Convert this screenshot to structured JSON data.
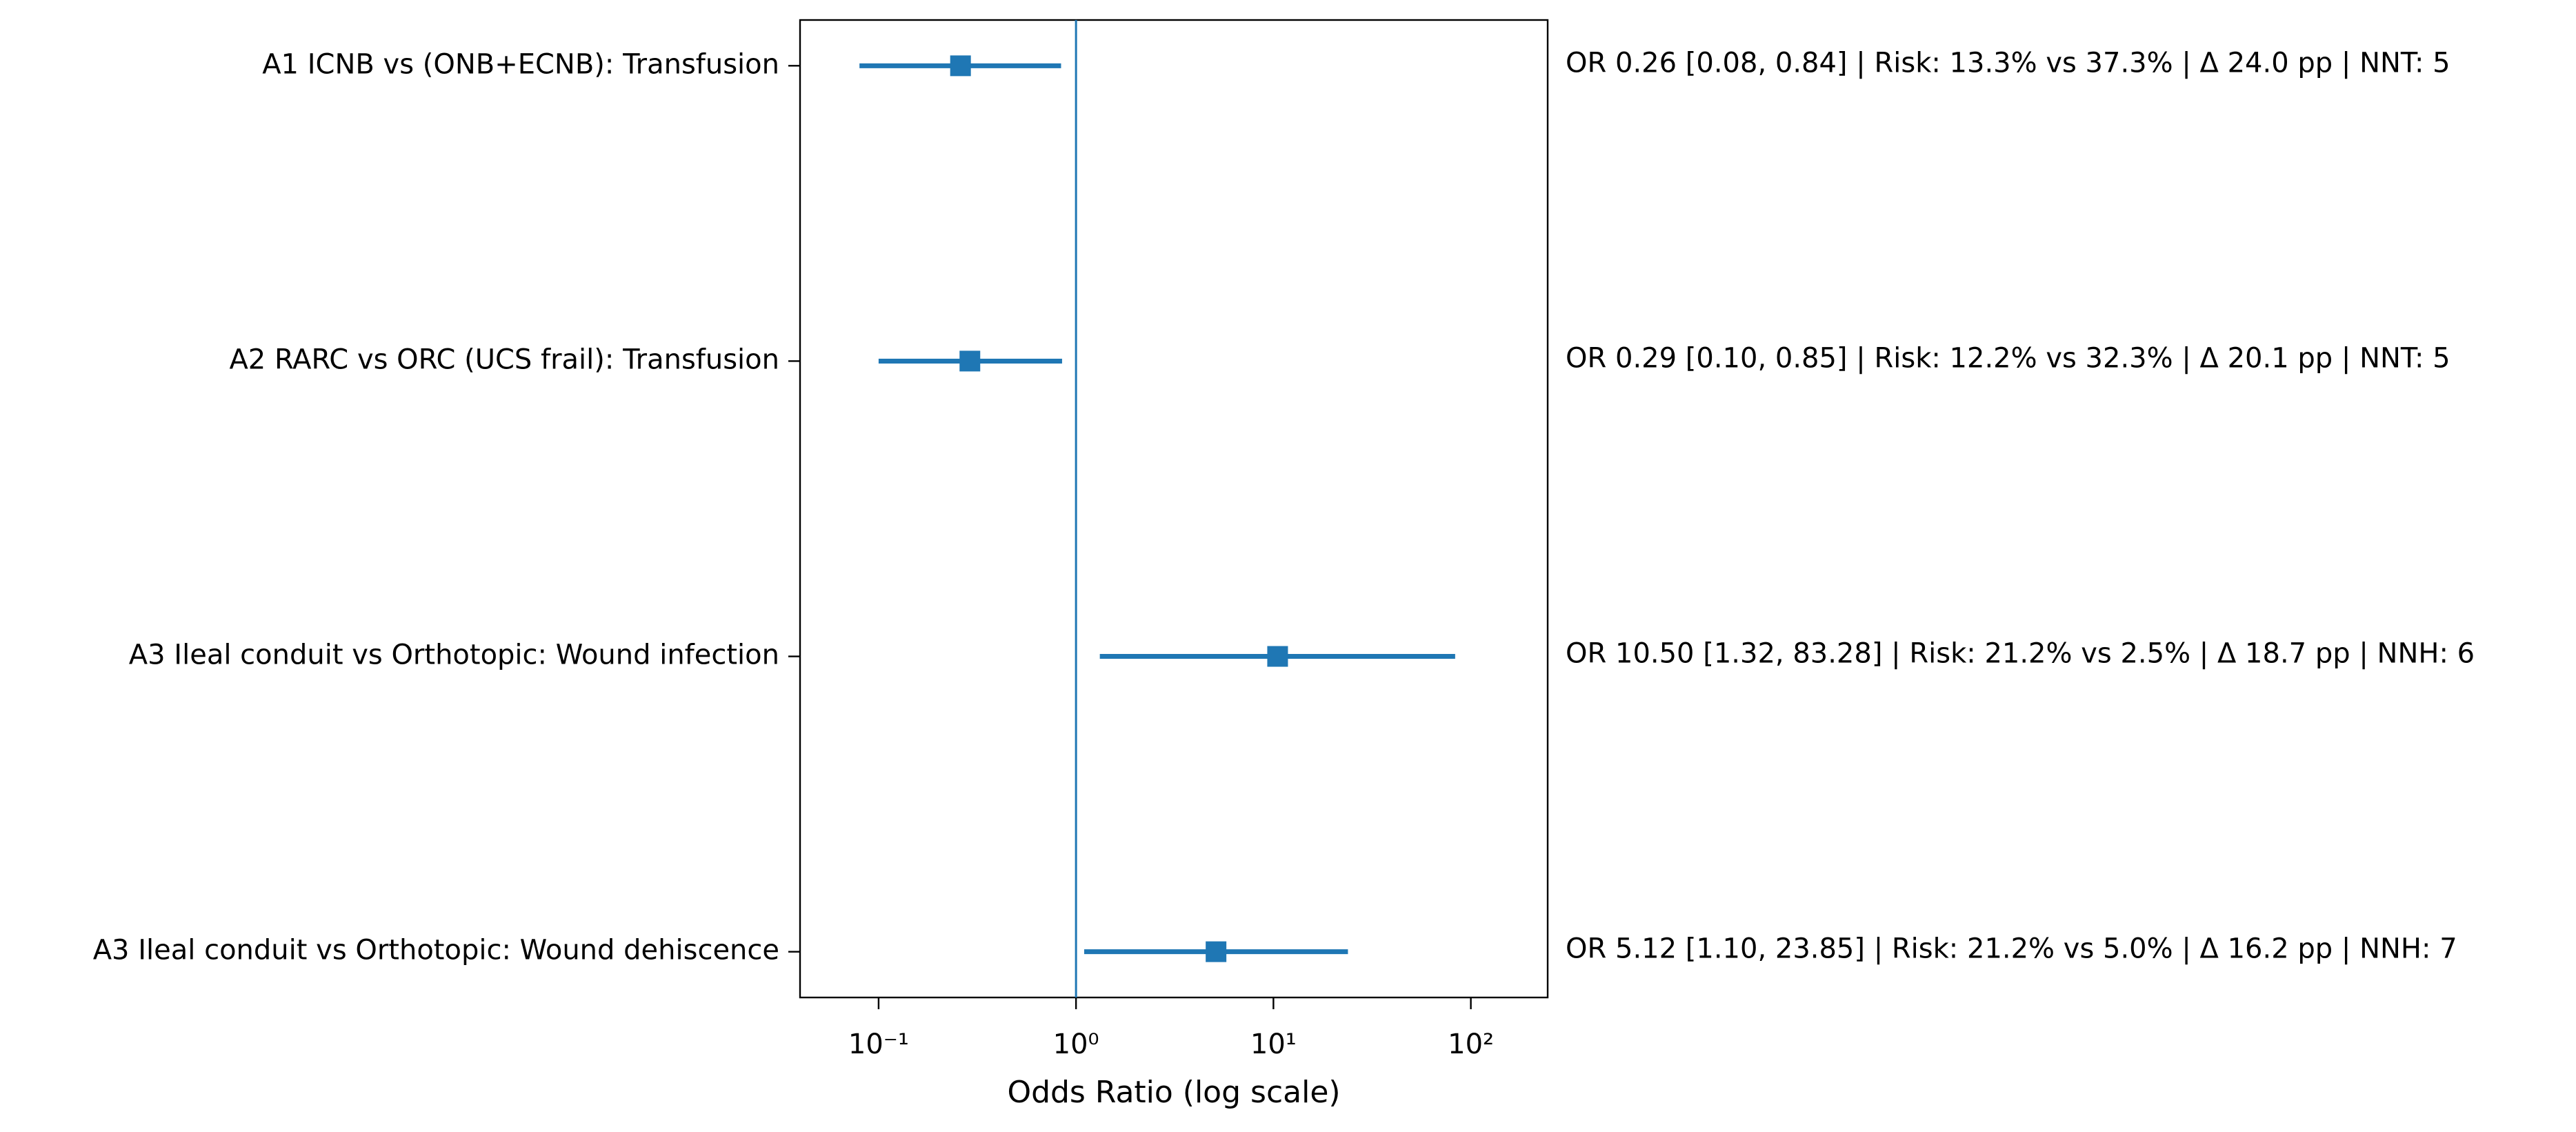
{
  "chart_data": {
    "type": "forest",
    "categories": [
      "A1 ICNB vs (ONB+ECNB): Transfusion",
      "A2 RARC vs ORC (UCS frail): Transfusion",
      "A3 Ileal conduit vs Orthotopic: Wound infection",
      "A3 Ileal conduit vs Orthotopic: Wound dehiscence"
    ],
    "values": [
      0.26,
      0.29,
      10.5,
      5.12
    ],
    "lower": [
      0.08,
      0.1,
      1.32,
      1.1
    ],
    "upper": [
      0.84,
      0.85,
      83.28,
      23.85
    ],
    "annotations": [
      "OR 0.26 [0.08, 0.84] | Risk: 13.3% vs 37.3% | Δ 24.0 pp | NNT: 5",
      "OR 0.29 [0.10, 0.85] | Risk: 12.2% vs 32.3% | Δ 20.1 pp | NNT: 5",
      "OR 10.50 [1.32, 83.28] | Risk: 21.2% vs 2.5% | Δ 18.7 pp | NNH: 6",
      "OR 5.12 [1.10, 23.85] | Risk: 21.2% vs 5.0% | Δ 16.2 pp | NNH: 7"
    ],
    "color": "#1f77b4",
    "reference_line": 1,
    "xlabel": "Odds Ratio (log scale)",
    "xscale": "log",
    "xlim": [
      0.04,
      245
    ],
    "xticks": [
      {
        "value": 0.1,
        "label": "10⁻¹"
      },
      {
        "value": 1,
        "label": "10⁰"
      },
      {
        "value": 10,
        "label": "10¹"
      },
      {
        "value": 100,
        "label": "10²"
      }
    ]
  }
}
